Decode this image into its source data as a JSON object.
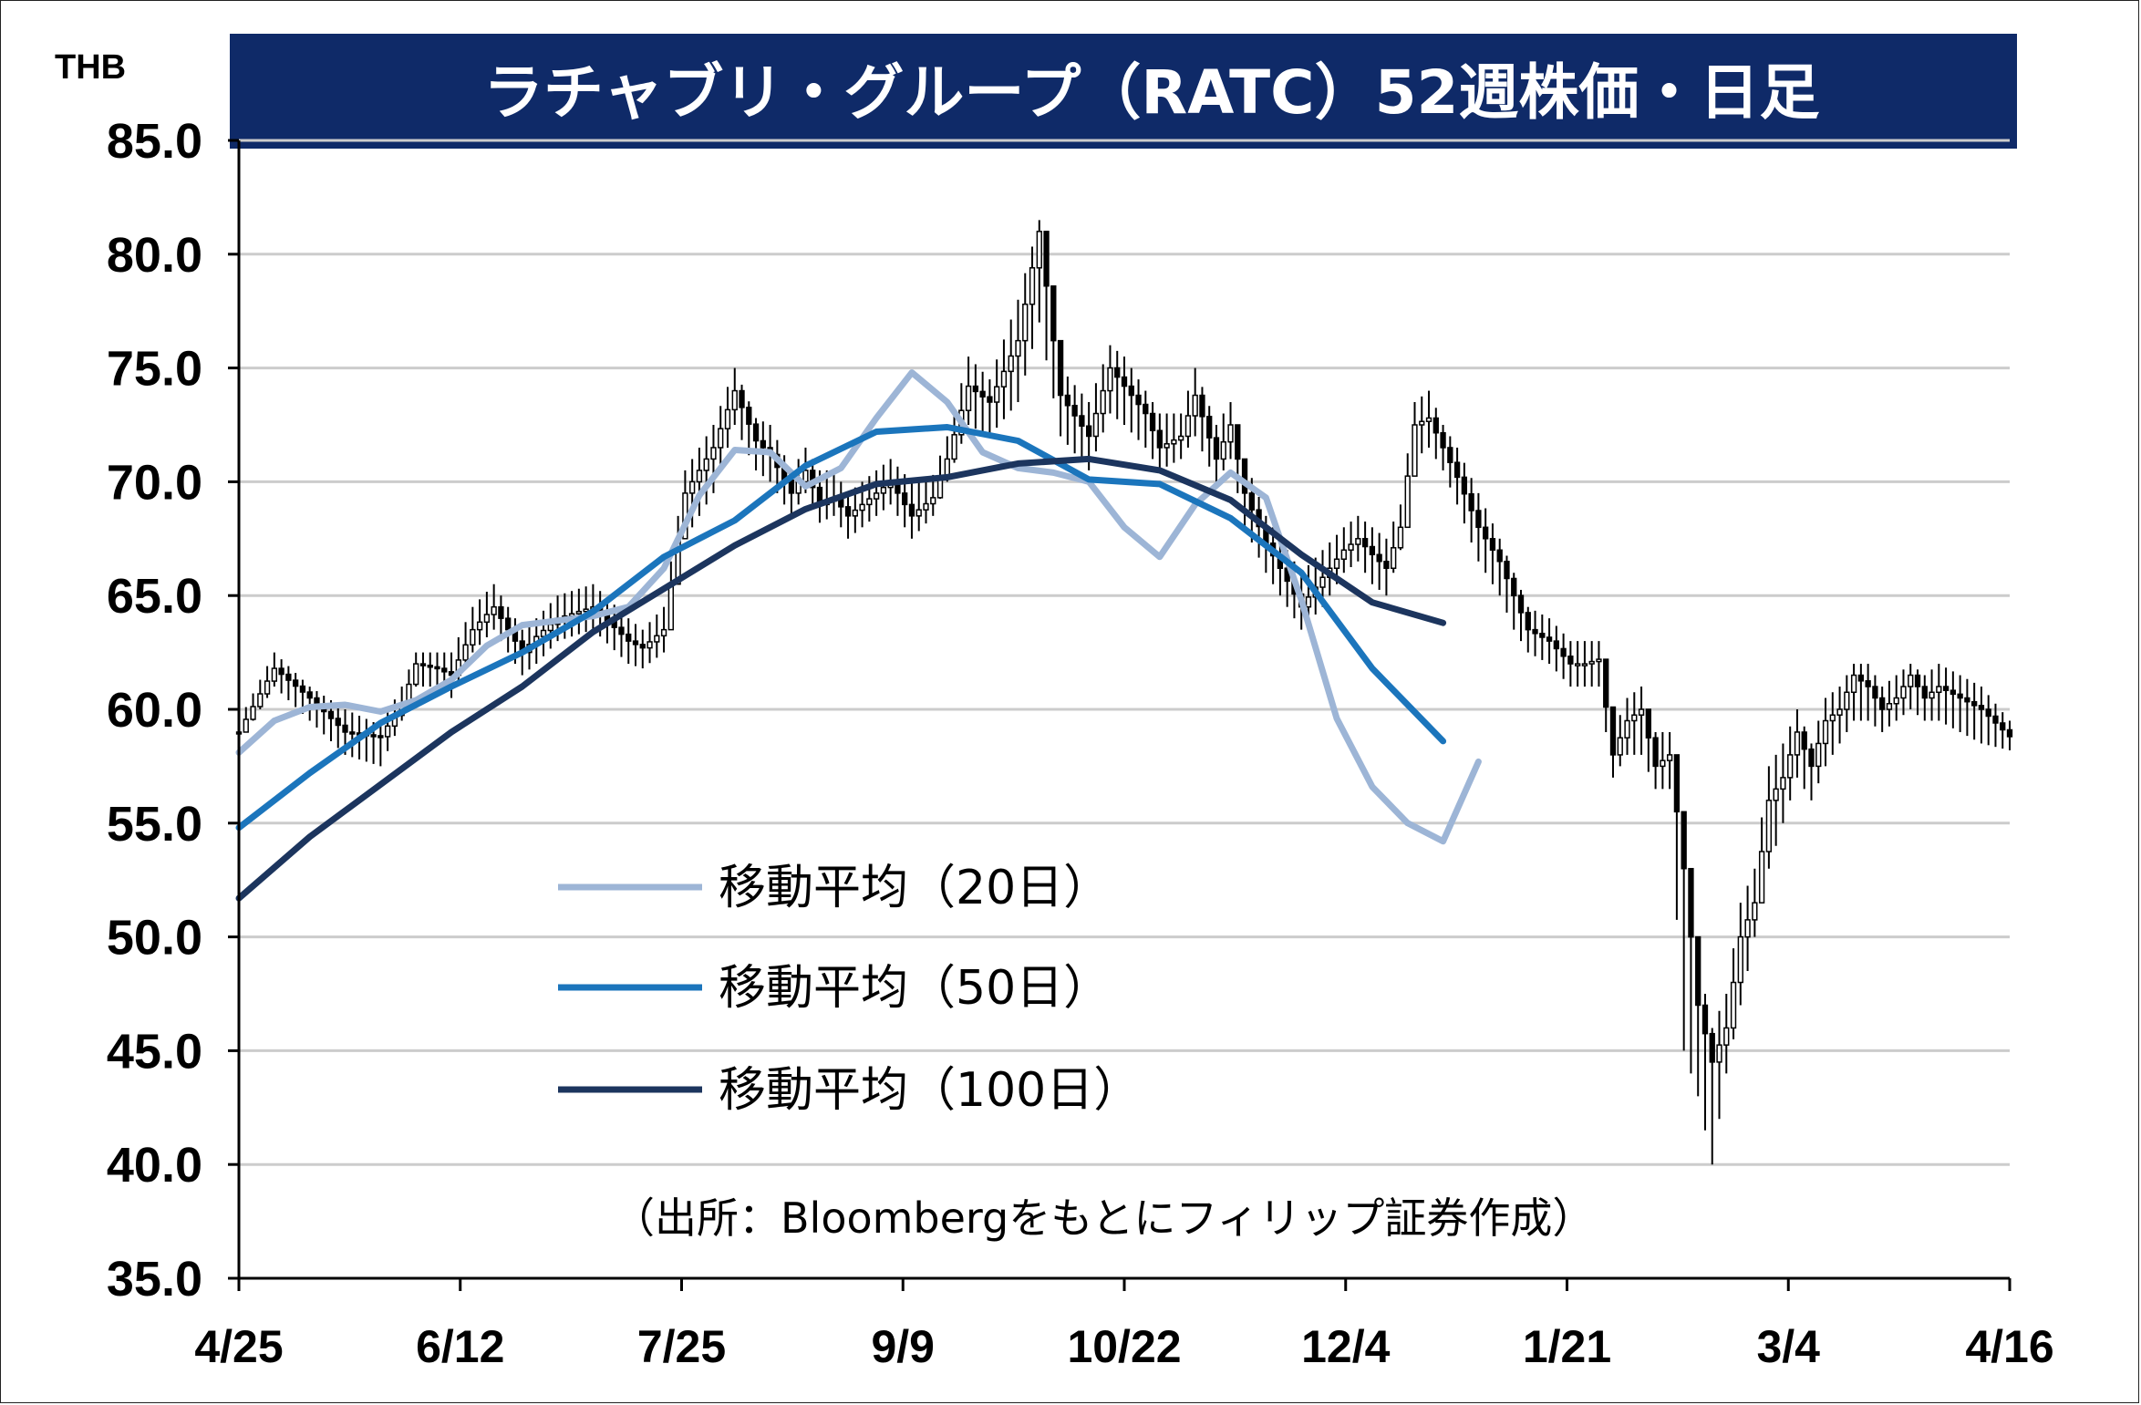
{
  "chart_data": {
    "type": "candlestick",
    "title": "ラチャブリ・グループ（RATC）52週株価・日足",
    "unit_label": "THB",
    "source": "（出所：Bloombergをもとにフィリップ証券作成）",
    "ylim": [
      35,
      85
    ],
    "y_ticks": [
      "85.0",
      "80.0",
      "75.0",
      "70.0",
      "65.0",
      "60.0",
      "55.0",
      "50.0",
      "45.0",
      "40.0",
      "35.0"
    ],
    "x_ticks": [
      "4/25",
      "6/12",
      "7/25",
      "9/9",
      "10/22",
      "12/4",
      "1/21",
      "3/4",
      "4/16"
    ],
    "grid": true,
    "legend": "center-left",
    "colors": {
      "title_bg": "#0f2a68",
      "ma20": "#9db5d6",
      "ma50": "#1b75bc",
      "ma100": "#1c355e",
      "grid": "#cccccc",
      "candle": "#000000"
    },
    "series": [
      {
        "name": "移動平均（20日）",
        "color": "#9db5d6",
        "x": [
          0,
          5,
          10,
          15,
          20,
          25,
          30,
          35,
          40,
          45,
          50,
          55,
          60,
          65,
          70,
          75,
          80,
          85,
          90,
          95,
          100,
          105,
          110,
          115,
          120,
          125,
          130,
          135,
          140,
          145,
          150,
          155,
          160,
          165,
          170,
          175,
          180,
          185,
          190,
          195,
          200,
          205,
          210,
          215,
          220,
          225,
          230,
          235,
          240,
          245,
          250
        ],
        "values": [
          58.1,
          59.5,
          60.1,
          60.2,
          59.9,
          60.4,
          61.3,
          62.8,
          63.7,
          63.9,
          64.1,
          64.5,
          66.2,
          69.4,
          71.4,
          71.3,
          69.8,
          70.6,
          72.8,
          74.8,
          73.5,
          71.3,
          70.6,
          70.4,
          70.0,
          68.0,
          66.7,
          69.0,
          70.4,
          69.3,
          64.8,
          59.6,
          56.6,
          55.0,
          54.2,
          57.7,
          null,
          null,
          null,
          null,
          null,
          null,
          null,
          null,
          null,
          null,
          null,
          null,
          null,
          null,
          null
        ]
      },
      {
        "name": "移動平均（50日）",
        "color": "#1b75bc",
        "x": [
          0,
          10,
          20,
          30,
          40,
          50,
          60,
          70,
          80,
          90,
          100,
          110,
          120,
          130,
          140,
          150,
          160,
          170,
          180,
          190,
          200,
          210,
          220,
          230,
          240,
          250
        ],
        "values": [
          54.8,
          57.2,
          59.4,
          61.0,
          62.5,
          64.3,
          66.7,
          68.3,
          70.7,
          72.2,
          72.4,
          71.8,
          70.1,
          69.9,
          68.4,
          66.0,
          61.8,
          58.6,
          null,
          null,
          null,
          null,
          null,
          null,
          null,
          null
        ]
      },
      {
        "name": "移動平均（100日）",
        "color": "#1c355e",
        "x": [
          0,
          10,
          20,
          30,
          40,
          50,
          60,
          70,
          80,
          90,
          100,
          110,
          120,
          130,
          140,
          150,
          160,
          170,
          180,
          190,
          200,
          210,
          220,
          230,
          240,
          250
        ],
        "values": [
          51.7,
          54.4,
          56.7,
          59.0,
          61.0,
          63.4,
          65.3,
          67.2,
          68.8,
          69.9,
          70.2,
          70.8,
          71.0,
          70.5,
          69.2,
          66.8,
          64.7,
          63.8,
          null,
          null,
          null,
          null,
          null,
          null,
          null,
          null
        ]
      }
    ],
    "price_anchors": {
      "x": [
        0,
        5,
        10,
        15,
        20,
        23,
        25,
        28,
        30,
        33,
        36,
        40,
        42,
        45,
        50,
        55,
        57,
        60,
        63,
        67,
        70,
        73,
        75,
        78,
        80,
        82,
        84,
        86,
        88,
        90,
        92,
        95,
        98,
        100,
        103,
        106,
        110,
        113,
        116,
        120,
        123,
        125,
        128,
        130,
        133,
        135,
        138,
        140,
        142,
        145,
        147,
        150,
        153,
        156,
        158,
        160,
        162,
        164,
        166,
        168,
        170,
        172,
        175,
        178,
        180,
        182,
        185,
        188,
        190,
        192,
        194,
        196,
        198,
        200,
        202,
        204,
        206,
        208,
        210,
        212,
        214,
        216,
        218,
        220,
        222,
        224,
        226,
        228,
        230,
        232,
        234,
        236,
        238,
        240,
        243,
        246,
        250
      ],
      "close": [
        59,
        61.8,
        60.5,
        59,
        58.8,
        60.2,
        62,
        61.8,
        61.5,
        63.5,
        64.5,
        62.5,
        63.2,
        64,
        64.5,
        63,
        62.7,
        63.5,
        69.5,
        71.5,
        74,
        71.8,
        71.2,
        69.5,
        70.5,
        69,
        69.3,
        68.5,
        69,
        69.5,
        70,
        68.5,
        69.3,
        71,
        74.2,
        73.5,
        76.2,
        81,
        73.8,
        72,
        75,
        74.2,
        73,
        71.5,
        72,
        73.8,
        71,
        72.5,
        69.5,
        67.3,
        66.2,
        64.5,
        65.8,
        67,
        67.5,
        66.8,
        66.2,
        68,
        72.5,
        72.8,
        71.5,
        70.2,
        68,
        66.5,
        65,
        63.5,
        63,
        62,
        62,
        62.2,
        58,
        59.5,
        60,
        57.5,
        58,
        53,
        47,
        44.5,
        46,
        50,
        51.5,
        56,
        57,
        59,
        57.5,
        59.5,
        60,
        61.5,
        61,
        60,
        60.5,
        61.5,
        60.5,
        61,
        60.5,
        60,
        58.8
      ],
      "low": [
        58.5,
        61,
        59.5,
        58,
        57.5,
        59.5,
        61,
        61,
        60.5,
        62.5,
        63.5,
        61.5,
        62,
        63,
        63.5,
        62,
        61.8,
        62.5,
        67.5,
        69.5,
        72.5,
        70.5,
        70,
        68.5,
        69.5,
        68.2,
        68.5,
        67.5,
        68,
        68.5,
        69,
        67.5,
        68.5,
        70,
        72.5,
        72,
        73.5,
        77,
        72,
        70.5,
        73,
        72.5,
        71.5,
        70.5,
        71,
        72,
        70,
        71,
        68,
        66,
        65,
        63.5,
        64.5,
        66,
        66.5,
        65.5,
        65,
        67,
        71,
        71.5,
        70.5,
        69,
        66.5,
        65,
        63.5,
        62.5,
        62,
        61,
        61,
        61,
        57,
        58,
        58,
        56.5,
        56.5,
        45,
        43,
        40,
        44,
        47,
        50,
        53,
        55,
        57,
        56,
        57.5,
        58.5,
        59.5,
        59.5,
        59,
        59.5,
        60,
        59.5,
        59.5,
        59,
        58.5,
        58.2
      ],
      "high": [
        59.5,
        62.5,
        61,
        60,
        59.3,
        61,
        62.5,
        62.5,
        62.5,
        64.5,
        65.5,
        63.5,
        64,
        65,
        65.5,
        64,
        63.5,
        64.5,
        70.5,
        72.5,
        75,
        72.8,
        72.5,
        70.5,
        71.5,
        70.5,
        70.5,
        69.5,
        70,
        70.5,
        71,
        70,
        70.3,
        72,
        75.5,
        74.5,
        78,
        81.5,
        75,
        73.5,
        76,
        75.5,
        74,
        73,
        73,
        75,
        72.5,
        73.5,
        71,
        68.5,
        67.5,
        66,
        67,
        68,
        68.5,
        68,
        67.5,
        69,
        73.5,
        74,
        72.5,
        71.5,
        69.5,
        67.5,
        66,
        64.5,
        64,
        63,
        63,
        63,
        59,
        60.5,
        61,
        59,
        59,
        55,
        49,
        46,
        47.5,
        51.5,
        53,
        57.5,
        58.5,
        60,
        58.5,
        60.5,
        61,
        62,
        62,
        61,
        61.5,
        62,
        61.5,
        62,
        61.5,
        61,
        59.5
      ]
    }
  }
}
